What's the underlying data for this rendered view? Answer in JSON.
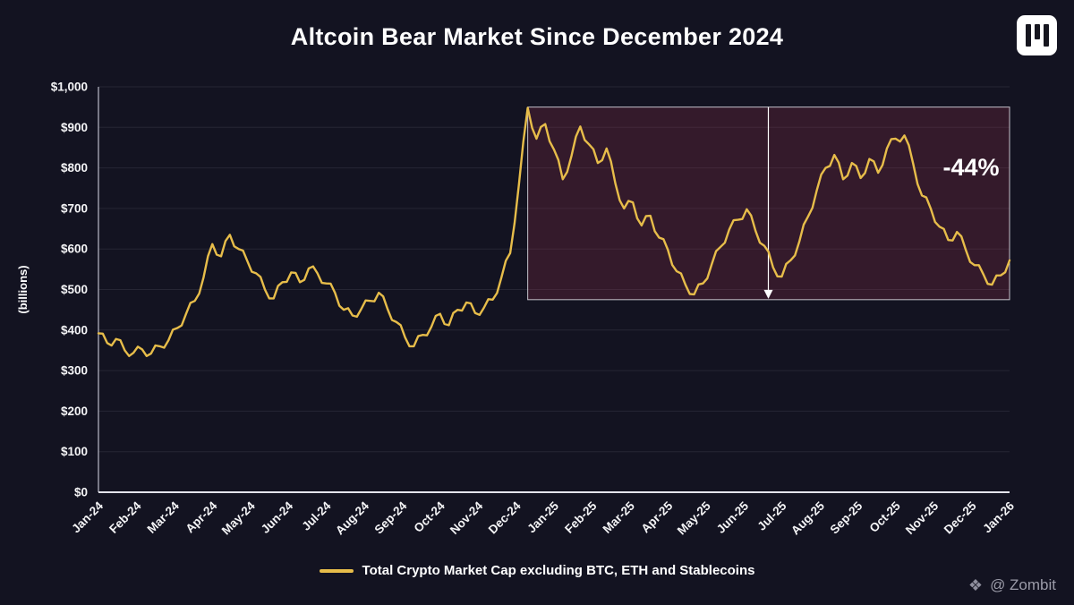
{
  "title": "Altcoin Bear Market Since December 2024",
  "watermark": {
    "text": "@ Zombit"
  },
  "colors": {
    "background": "#131321",
    "line": "#E7BD4A",
    "highlight_fill": "rgba(152,48,74,0.25)",
    "highlight_border": "rgba(225,225,232,0.85)",
    "grid": "#262634",
    "axis": "#e4e4ec",
    "text": "#f4f4f6"
  },
  "chart_data": {
    "type": "line",
    "title": "Altcoin Bear Market Since December 2024",
    "ylabel": "(billions)",
    "ylim": [
      0,
      1000
    ],
    "y_ticks": [
      "$0",
      "$100",
      "$200",
      "$300",
      "$400",
      "$500",
      "$600",
      "$700",
      "$800",
      "$900",
      "$1,000"
    ],
    "grid": "horizontal",
    "legend": "Total Crypto Market Cap excluding BTC, ETH and Stablecoins",
    "legend_position": "bottom",
    "categories": [
      "Jan-24",
      "Feb-24",
      "Mar-24",
      "Apr-24",
      "May-24",
      "Jun-24",
      "Jul-24",
      "Aug-24",
      "Sep-24",
      "Oct-24",
      "Nov-24",
      "Dec-24",
      "Jan-25",
      "Feb-25",
      "Mar-25",
      "Apr-25",
      "May-25",
      "Jun-25",
      "Jul-25",
      "Aug-25",
      "Sep-25",
      "Oct-25",
      "Nov-25",
      "Dec-25",
      "Jan-26"
    ],
    "x_resolution": "weekly",
    "series": [
      {
        "name": "Total Crypto Market Cap excluding BTC, ETH and Stablecoins",
        "color": "#E7BD4A",
        "values": [
          392,
          368,
          378,
          350,
          344,
          352,
          342,
          360,
          375,
          405,
          440,
          472,
          530,
          612,
          582,
          635,
          600,
          570,
          540,
          500,
          478,
          518,
          542,
          518,
          552,
          540,
          515,
          492,
          450,
          436,
          452,
          472,
          492,
          452,
          420,
          382,
          360,
          388,
          408,
          440,
          412,
          450,
          468,
          442,
          455,
          475,
          530,
          590,
          760,
          948,
          872,
          908,
          845,
          772,
          830,
          902,
          858,
          812,
          848,
          762,
          700,
          715,
          658,
          682,
          628,
          598,
          545,
          512,
          488,
          515,
          562,
          605,
          648,
          672,
          698,
          645,
          608,
          555,
          532,
          572,
          618,
          680,
          745,
          800,
          832,
          772,
          812,
          775,
          822,
          788,
          848,
          872,
          880,
          810,
          732,
          700,
          655,
          622,
          642,
          598,
          560,
          538,
          512,
          535,
          572
        ]
      }
    ],
    "annotation": {
      "label": "-44%",
      "region": {
        "from": "Dec-24",
        "to": "Jan-26",
        "top": 950,
        "bottom": 475
      },
      "marker_line": {
        "month": "Jul-25",
        "arrow": "down"
      }
    }
  }
}
